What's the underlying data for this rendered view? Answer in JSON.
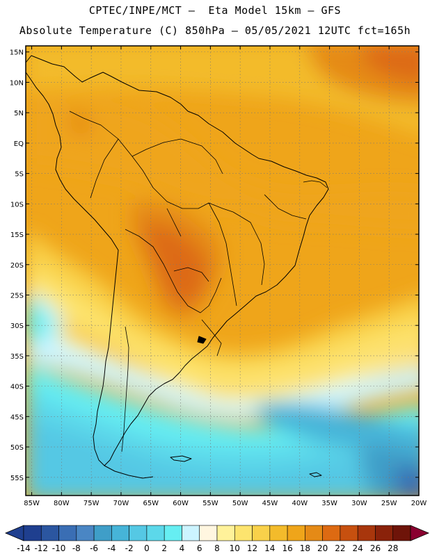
{
  "header": {
    "line1": "CPTEC/INPE/MCT –  Eta Model 15km – GFS",
    "line2": "Absolute Temperature (C) 850hPa – 05/05/2021 12UTC fct=165h"
  },
  "map": {
    "region": "South America",
    "variable": "Absolute Temperature (C)",
    "level": "850hPa",
    "lon_range": [
      -86,
      -20
    ],
    "lat_range": [
      -58,
      16
    ],
    "lat_ticks": [
      {
        "v": 15,
        "label": "15N"
      },
      {
        "v": 10,
        "label": "10N"
      },
      {
        "v": 5,
        "label": "5N"
      },
      {
        "v": 0,
        "label": "EQ"
      },
      {
        "v": -5,
        "label": "5S"
      },
      {
        "v": -10,
        "label": "10S"
      },
      {
        "v": -15,
        "label": "15S"
      },
      {
        "v": -20,
        "label": "20S"
      },
      {
        "v": -25,
        "label": "25S"
      },
      {
        "v": -30,
        "label": "30S"
      },
      {
        "v": -35,
        "label": "35S"
      },
      {
        "v": -40,
        "label": "40S"
      },
      {
        "v": -45,
        "label": "45S"
      },
      {
        "v": -50,
        "label": "50S"
      },
      {
        "v": -55,
        "label": "55S"
      }
    ],
    "lon_ticks": [
      {
        "v": -85,
        "label": "85W"
      },
      {
        "v": -80,
        "label": "80W"
      },
      {
        "v": -75,
        "label": "75W"
      },
      {
        "v": -70,
        "label": "70W"
      },
      {
        "v": -65,
        "label": "65W"
      },
      {
        "v": -60,
        "label": "60W"
      },
      {
        "v": -55,
        "label": "55W"
      },
      {
        "v": -50,
        "label": "50W"
      },
      {
        "v": -45,
        "label": "45W"
      },
      {
        "v": -40,
        "label": "40W"
      },
      {
        "v": -35,
        "label": "35W"
      },
      {
        "v": -30,
        "label": "30W"
      },
      {
        "v": -25,
        "label": "25W"
      },
      {
        "v": -20,
        "label": "20W"
      }
    ]
  },
  "colorbar": {
    "labels": [
      "-14",
      "-12",
      "-10",
      "-8",
      "-6",
      "-4",
      "-2",
      "0",
      "2",
      "4",
      "6",
      "8",
      "10",
      "12",
      "14",
      "16",
      "18",
      "20",
      "22",
      "24",
      "26",
      "28"
    ],
    "colors": [
      "#1f3f8f",
      "#2b56a0",
      "#3a6eb4",
      "#4a86c4",
      "#3f9ec8",
      "#46b4d8",
      "#55c8e4",
      "#5cd8ea",
      "#66eef2",
      "#ccf4ff",
      "#fff6e0",
      "#fff29a",
      "#fde46e",
      "#f9d14a",
      "#f3bb2b",
      "#efa51a",
      "#e58a16",
      "#dd6a12",
      "#c7500f",
      "#a8360c",
      "#8a220a",
      "#6e1409",
      "#8a0030"
    ]
  }
}
